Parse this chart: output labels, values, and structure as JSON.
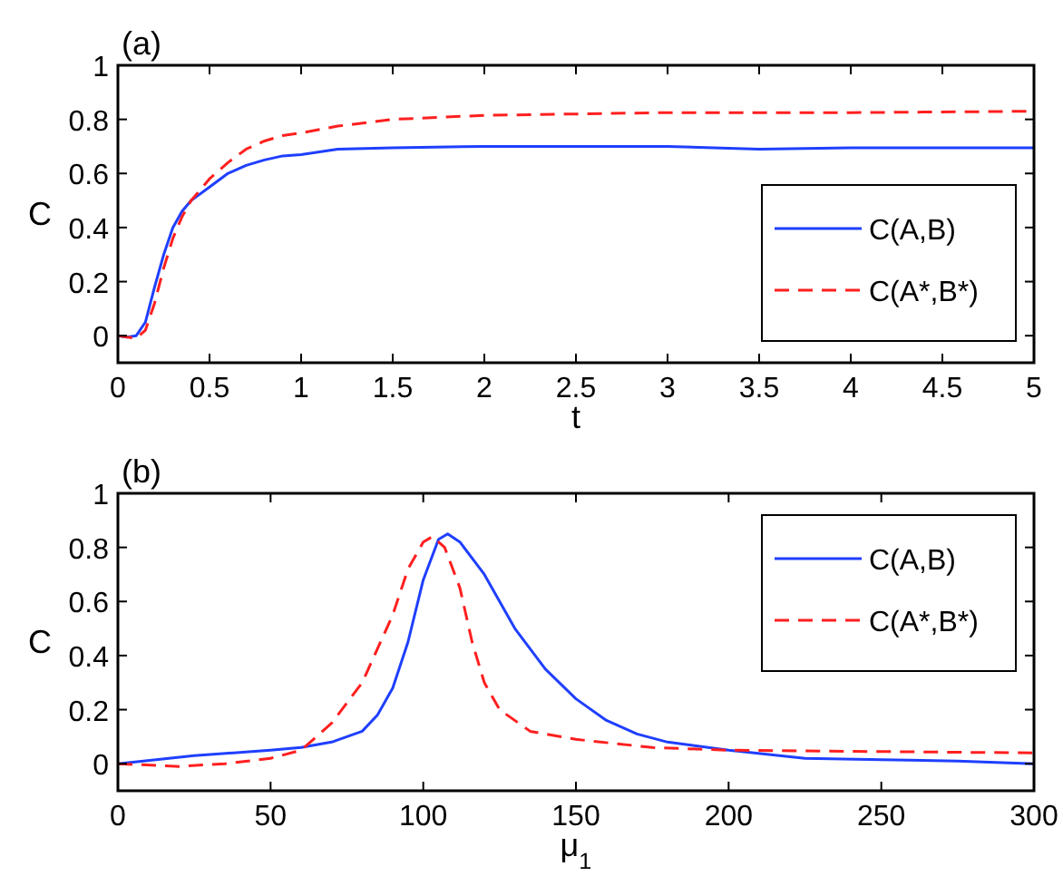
{
  "chart_data": [
    {
      "type": "line",
      "title": "(a)",
      "xlabel": "t",
      "ylabel": "C",
      "xlim": [
        0,
        5
      ],
      "xticks": [
        0,
        0.5,
        1,
        1.5,
        2,
        2.5,
        3,
        3.5,
        4,
        4.5,
        5
      ],
      "ylim": [
        -0.1,
        1
      ],
      "yticks": [
        0,
        0.2,
        0.4,
        0.6,
        0.8,
        1
      ],
      "legend": "bottom right",
      "grid": false,
      "series": [
        {
          "name": "C(A,B)",
          "color": "#1f3fff",
          "line_style": "solid",
          "x": [
            0,
            0.05,
            0.1,
            0.15,
            0.2,
            0.25,
            0.3,
            0.35,
            0.4,
            0.5,
            0.6,
            0.7,
            0.8,
            0.9,
            1,
            1.2,
            1.5,
            2,
            2.5,
            3,
            3.5,
            4,
            4.5,
            5
          ],
          "values": [
            0,
            -0.005,
            0,
            0.05,
            0.18,
            0.3,
            0.4,
            0.46,
            0.5,
            0.55,
            0.6,
            0.63,
            0.65,
            0.665,
            0.67,
            0.69,
            0.695,
            0.7,
            0.7,
            0.7,
            0.69,
            0.695,
            0.695,
            0.695
          ]
        },
        {
          "name": "C(A*,B*)",
          "color": "#ff1f1f",
          "line_style": "dashed",
          "x": [
            0,
            0.1,
            0.15,
            0.2,
            0.25,
            0.3,
            0.35,
            0.4,
            0.5,
            0.6,
            0.7,
            0.8,
            0.9,
            1,
            1.2,
            1.5,
            2,
            2.5,
            3,
            4,
            5
          ],
          "values": [
            0,
            -0.01,
            0.02,
            0.12,
            0.25,
            0.36,
            0.44,
            0.5,
            0.58,
            0.64,
            0.69,
            0.72,
            0.74,
            0.75,
            0.775,
            0.8,
            0.815,
            0.82,
            0.825,
            0.825,
            0.83
          ]
        }
      ]
    },
    {
      "type": "line",
      "title": "(b)",
      "xlabel": "μ$_{1}$",
      "ylabel": "C",
      "xlim": [
        0,
        300
      ],
      "xticks": [
        0,
        50,
        100,
        150,
        200,
        250,
        300
      ],
      "ylim": [
        -0.1,
        1
      ],
      "yticks": [
        0,
        0.2,
        0.4,
        0.6,
        0.8,
        1
      ],
      "legend": "top right",
      "grid": false,
      "series": [
        {
          "name": "C(A,B)",
          "color": "#1f3fff",
          "line_style": "solid",
          "x": [
            0,
            25,
            50,
            60,
            70,
            80,
            85,
            90,
            95,
            100,
            105,
            108,
            112,
            120,
            130,
            140,
            150,
            160,
            170,
            180,
            200,
            225,
            250,
            275,
            300
          ],
          "values": [
            0,
            0.03,
            0.05,
            0.06,
            0.08,
            0.12,
            0.18,
            0.28,
            0.45,
            0.68,
            0.83,
            0.85,
            0.82,
            0.7,
            0.5,
            0.35,
            0.24,
            0.16,
            0.11,
            0.08,
            0.05,
            0.02,
            0.015,
            0.01,
            0
          ]
        },
        {
          "name": "C(A*,B*)",
          "color": "#ff1f1f",
          "line_style": "dashed",
          "x": [
            0,
            20,
            35,
            50,
            60,
            70,
            80,
            90,
            95,
            100,
            103,
            107,
            112,
            116,
            120,
            125,
            135,
            150,
            175,
            200,
            250,
            300
          ],
          "values": [
            0,
            -0.01,
            0,
            0.02,
            0.05,
            0.15,
            0.3,
            0.55,
            0.72,
            0.82,
            0.84,
            0.8,
            0.65,
            0.45,
            0.3,
            0.2,
            0.12,
            0.09,
            0.06,
            0.05,
            0.045,
            0.04
          ]
        }
      ]
    }
  ]
}
